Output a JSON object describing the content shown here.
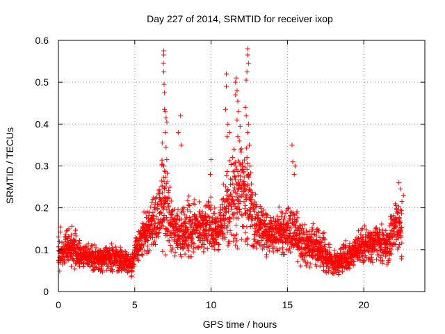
{
  "chart_data": {
    "type": "scatter",
    "title": "Day 227 of 2014, SRMTID for receiver ixop",
    "xlabel": "GPS time / hours",
    "ylabel": "SRMTID / TECUs",
    "xlim": [
      0,
      24
    ],
    "ylim": [
      0,
      0.6
    ],
    "xticks": [
      0,
      5,
      10,
      15,
      20
    ],
    "xtick_labels": [
      "0",
      "5",
      "10",
      "15",
      "20"
    ],
    "yticks": [
      0,
      0.1,
      0.2,
      0.3,
      0.4,
      0.5,
      0.6
    ],
    "ytick_labels": [
      "0",
      "0.1",
      "0.2",
      "0.3",
      "0.4",
      "0.5",
      "0.6"
    ],
    "grid": true,
    "marker": "+",
    "color": "#ff0000",
    "series": [
      {
        "name": "ixop",
        "profile": [
          [
            0.0,
            0.085,
            0.035
          ],
          [
            0.5,
            0.1,
            0.035
          ],
          [
            1.0,
            0.1,
            0.035
          ],
          [
            1.5,
            0.085,
            0.03
          ],
          [
            2.0,
            0.08,
            0.025
          ],
          [
            3.0,
            0.075,
            0.025
          ],
          [
            4.0,
            0.075,
            0.025
          ],
          [
            4.8,
            0.06,
            0.02
          ],
          [
            5.0,
            0.09,
            0.03
          ],
          [
            5.5,
            0.12,
            0.04
          ],
          [
            6.0,
            0.15,
            0.05
          ],
          [
            6.5,
            0.17,
            0.06
          ],
          [
            6.9,
            0.22,
            0.1
          ],
          [
            7.3,
            0.17,
            0.06
          ],
          [
            7.8,
            0.13,
            0.04
          ],
          [
            8.5,
            0.14,
            0.05
          ],
          [
            9.0,
            0.15,
            0.05
          ],
          [
            9.5,
            0.15,
            0.05
          ],
          [
            10.0,
            0.15,
            0.05
          ],
          [
            10.5,
            0.14,
            0.05
          ],
          [
            11.0,
            0.19,
            0.07
          ],
          [
            11.5,
            0.22,
            0.1
          ],
          [
            12.0,
            0.22,
            0.1
          ],
          [
            12.5,
            0.2,
            0.08
          ],
          [
            13.0,
            0.15,
            0.05
          ],
          [
            14.0,
            0.13,
            0.04
          ],
          [
            15.0,
            0.14,
            0.05
          ],
          [
            15.5,
            0.14,
            0.05
          ],
          [
            16.0,
            0.11,
            0.04
          ],
          [
            17.0,
            0.1,
            0.035
          ],
          [
            18.0,
            0.065,
            0.025
          ],
          [
            19.0,
            0.08,
            0.03
          ],
          [
            20.0,
            0.11,
            0.035
          ],
          [
            21.0,
            0.11,
            0.035
          ],
          [
            21.5,
            0.1,
            0.035
          ],
          [
            22.0,
            0.15,
            0.05
          ],
          [
            22.5,
            0.14,
            0.05
          ]
        ],
        "peaks": [
          [
            6.9,
            0.575
          ],
          [
            6.9,
            0.565
          ],
          [
            6.88,
            0.545
          ],
          [
            6.9,
            0.525
          ],
          [
            6.92,
            0.495
          ],
          [
            6.95,
            0.475
          ],
          [
            6.95,
            0.435
          ],
          [
            7.0,
            0.43
          ],
          [
            7.05,
            0.415
          ],
          [
            7.1,
            0.405
          ],
          [
            7.0,
            0.38
          ],
          [
            7.05,
            0.345
          ],
          [
            6.8,
            0.355
          ],
          [
            7.1,
            0.315
          ],
          [
            6.9,
            0.3
          ],
          [
            8.0,
            0.42
          ],
          [
            8.05,
            0.35
          ],
          [
            7.85,
            0.38
          ],
          [
            10.0,
            0.315
          ],
          [
            9.95,
            0.28
          ],
          [
            11.0,
            0.52
          ],
          [
            11.0,
            0.49
          ],
          [
            10.95,
            0.435
          ],
          [
            11.1,
            0.4
          ],
          [
            11.2,
            0.38
          ],
          [
            11.05,
            0.37
          ],
          [
            11.6,
            0.5
          ],
          [
            11.65,
            0.51
          ],
          [
            11.7,
            0.48
          ],
          [
            11.6,
            0.47
          ],
          [
            11.75,
            0.455
          ],
          [
            11.8,
            0.43
          ],
          [
            11.7,
            0.41
          ],
          [
            11.9,
            0.395
          ],
          [
            11.75,
            0.37
          ],
          [
            11.85,
            0.36
          ],
          [
            11.5,
            0.34
          ],
          [
            11.4,
            0.32
          ],
          [
            11.95,
            0.3
          ],
          [
            12.4,
            0.58
          ],
          [
            12.4,
            0.565
          ],
          [
            12.45,
            0.545
          ],
          [
            12.35,
            0.525
          ],
          [
            12.3,
            0.505
          ],
          [
            12.25,
            0.44
          ],
          [
            12.3,
            0.42
          ],
          [
            12.45,
            0.4
          ],
          [
            12.4,
            0.38
          ],
          [
            12.5,
            0.35
          ],
          [
            12.35,
            0.32
          ],
          [
            12.55,
            0.3
          ],
          [
            12.45,
            0.28
          ],
          [
            15.3,
            0.35
          ],
          [
            15.35,
            0.31
          ],
          [
            15.5,
            0.3
          ],
          [
            15.45,
            0.28
          ],
          [
            22.3,
            0.26
          ],
          [
            22.4,
            0.245
          ],
          [
            22.6,
            0.23
          ],
          [
            22.5,
            0.215
          ]
        ]
      }
    ]
  }
}
